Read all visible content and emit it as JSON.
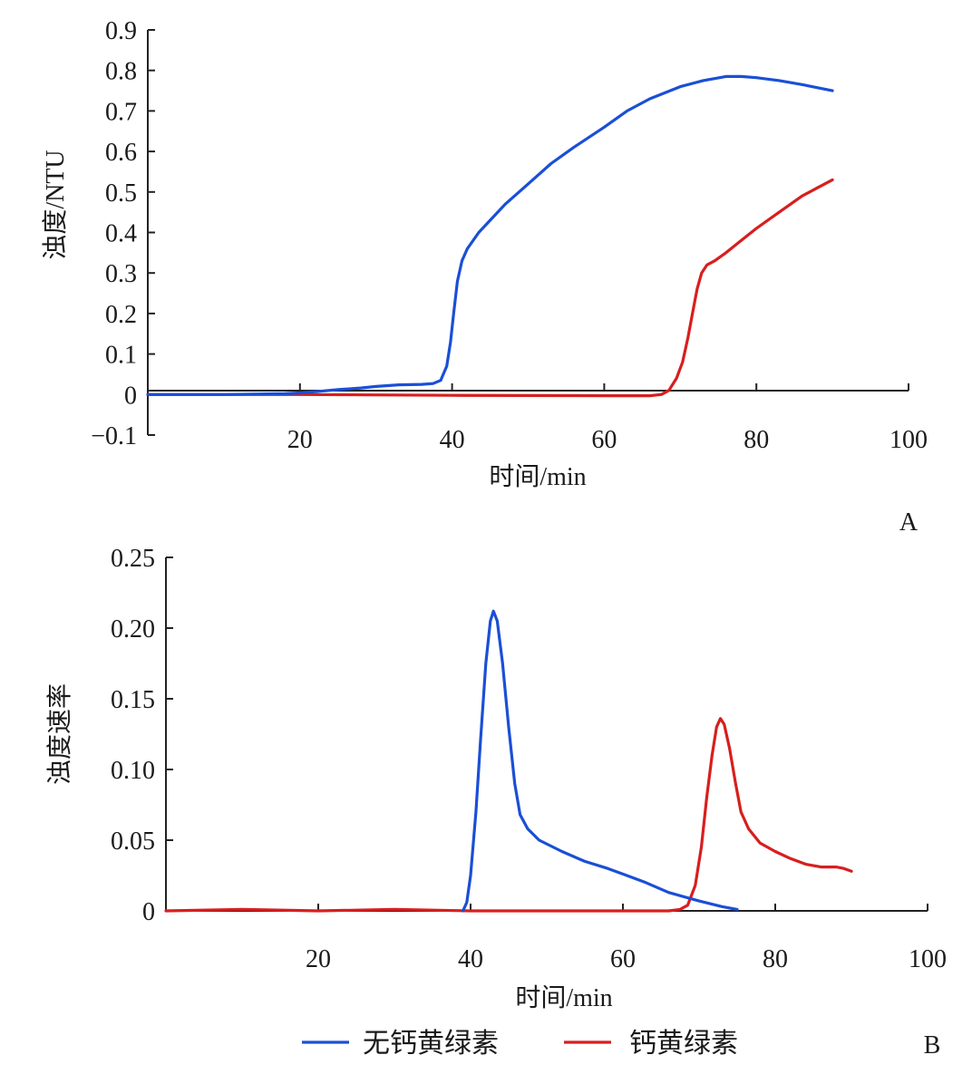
{
  "legend": {
    "items": [
      {
        "label": "无钙黄绿素",
        "color": "#1a4fd6"
      },
      {
        "label": "钙黄绿素",
        "color": "#d81e1e"
      }
    ]
  },
  "chart_data": [
    {
      "type": "line",
      "panel_label": "A",
      "xlabel": "时间/min",
      "ylabel": "浊度/NTU",
      "xlim": [
        0,
        100
      ],
      "ylim": [
        -0.1,
        0.9
      ],
      "x_ticks": [
        20,
        40,
        60,
        80,
        100
      ],
      "x_tick_labels": [
        "20",
        "40",
        "60",
        "80",
        "100"
      ],
      "y_ticks": [
        -0.1,
        0,
        0.1,
        0.2,
        0.3,
        0.4,
        0.5,
        0.6,
        0.7,
        0.8,
        0.9
      ],
      "y_tick_labels": [
        "−0.1",
        "0",
        "0.1",
        "0.2",
        "0.3",
        "0.4",
        "0.5",
        "0.6",
        "0.7",
        "0.8",
        "0.9"
      ],
      "grid": false,
      "series": [
        {
          "name": "无钙黄绿素",
          "color": "#1a4fd6",
          "points": [
            [
              0,
              0
            ],
            [
              10,
              0
            ],
            [
              18,
              0.002
            ],
            [
              20,
              0.004
            ],
            [
              22,
              0.007
            ],
            [
              25,
              0.012
            ],
            [
              28,
              0.016
            ],
            [
              30,
              0.02
            ],
            [
              33,
              0.024
            ],
            [
              36,
              0.025
            ],
            [
              37.5,
              0.027
            ],
            [
              38.5,
              0.035
            ],
            [
              39.3,
              0.07
            ],
            [
              39.8,
              0.13
            ],
            [
              40.2,
              0.2
            ],
            [
              40.7,
              0.28
            ],
            [
              41.3,
              0.33
            ],
            [
              42,
              0.36
            ],
            [
              43.5,
              0.4
            ],
            [
              45,
              0.43
            ],
            [
              47,
              0.47
            ],
            [
              50,
              0.52
            ],
            [
              53,
              0.57
            ],
            [
              56,
              0.61
            ],
            [
              60,
              0.66
            ],
            [
              63,
              0.7
            ],
            [
              66,
              0.73
            ],
            [
              70,
              0.76
            ],
            [
              73,
              0.775
            ],
            [
              76,
              0.785
            ],
            [
              78,
              0.785
            ],
            [
              80,
              0.782
            ],
            [
              83,
              0.775
            ],
            [
              86,
              0.765
            ],
            [
              90,
              0.75
            ]
          ]
        },
        {
          "name": "钙黄绿素",
          "color": "#d81e1e",
          "points": [
            [
              0,
              0
            ],
            [
              20,
              0
            ],
            [
              40,
              -0.002
            ],
            [
              60,
              -0.003
            ],
            [
              66,
              -0.003
            ],
            [
              67.5,
              0.0
            ],
            [
              68.5,
              0.01
            ],
            [
              69.5,
              0.04
            ],
            [
              70.3,
              0.08
            ],
            [
              71,
              0.14
            ],
            [
              71.6,
              0.2
            ],
            [
              72.2,
              0.26
            ],
            [
              72.8,
              0.3
            ],
            [
              73.5,
              0.32
            ],
            [
              74.5,
              0.33
            ],
            [
              76,
              0.35
            ],
            [
              78,
              0.38
            ],
            [
              80,
              0.41
            ],
            [
              83,
              0.45
            ],
            [
              86,
              0.49
            ],
            [
              88,
              0.51
            ],
            [
              90,
              0.53
            ]
          ]
        }
      ]
    },
    {
      "type": "line",
      "panel_label": "B",
      "xlabel": "时间/min",
      "ylabel": "浊度速率",
      "xlim": [
        0,
        100
      ],
      "ylim": [
        0,
        0.25
      ],
      "x_ticks": [
        20,
        40,
        60,
        80,
        100
      ],
      "x_tick_labels": [
        "20",
        "40",
        "60",
        "80",
        "100"
      ],
      "y_ticks": [
        0,
        0.05,
        0.1,
        0.15,
        0.2,
        0.25
      ],
      "y_tick_labels": [
        "0",
        "0.05",
        "0.10",
        "0.15",
        "0.20",
        "0.25"
      ],
      "grid": false,
      "series": [
        {
          "name": "无钙黄绿素",
          "color": "#1a4fd6",
          "points": [
            [
              39,
              0
            ],
            [
              39.5,
              0.006
            ],
            [
              40,
              0.025
            ],
            [
              40.7,
              0.07
            ],
            [
              41.3,
              0.12
            ],
            [
              42,
              0.175
            ],
            [
              42.6,
              0.205
            ],
            [
              43,
              0.212
            ],
            [
              43.5,
              0.205
            ],
            [
              44.2,
              0.175
            ],
            [
              45,
              0.13
            ],
            [
              45.8,
              0.09
            ],
            [
              46.5,
              0.068
            ],
            [
              47.5,
              0.058
            ],
            [
              49,
              0.05
            ],
            [
              52,
              0.042
            ],
            [
              55,
              0.035
            ],
            [
              58,
              0.03
            ],
            [
              60,
              0.026
            ],
            [
              63,
              0.02
            ],
            [
              66,
              0.013
            ],
            [
              70,
              0.007
            ],
            [
              73,
              0.003
            ],
            [
              75,
              0.001
            ]
          ]
        },
        {
          "name": "钙黄绿素",
          "color": "#d81e1e",
          "points": [
            [
              0,
              0.0
            ],
            [
              10,
              0.001
            ],
            [
              20,
              0.0
            ],
            [
              30,
              0.001
            ],
            [
              40,
              0.0
            ],
            [
              50,
              0.0
            ],
            [
              60,
              0.0
            ],
            [
              66,
              0.0
            ],
            [
              67.5,
              0.001
            ],
            [
              68.5,
              0.004
            ],
            [
              69.5,
              0.018
            ],
            [
              70.3,
              0.045
            ],
            [
              71,
              0.08
            ],
            [
              71.7,
              0.11
            ],
            [
              72.3,
              0.13
            ],
            [
              72.8,
              0.136
            ],
            [
              73.3,
              0.132
            ],
            [
              74,
              0.115
            ],
            [
              74.8,
              0.09
            ],
            [
              75.5,
              0.07
            ],
            [
              76.5,
              0.058
            ],
            [
              78,
              0.048
            ],
            [
              80,
              0.042
            ],
            [
              82,
              0.037
            ],
            [
              84,
              0.033
            ],
            [
              86,
              0.031
            ],
            [
              88,
              0.031
            ],
            [
              89,
              0.03
            ],
            [
              90,
              0.028
            ]
          ]
        }
      ]
    }
  ]
}
